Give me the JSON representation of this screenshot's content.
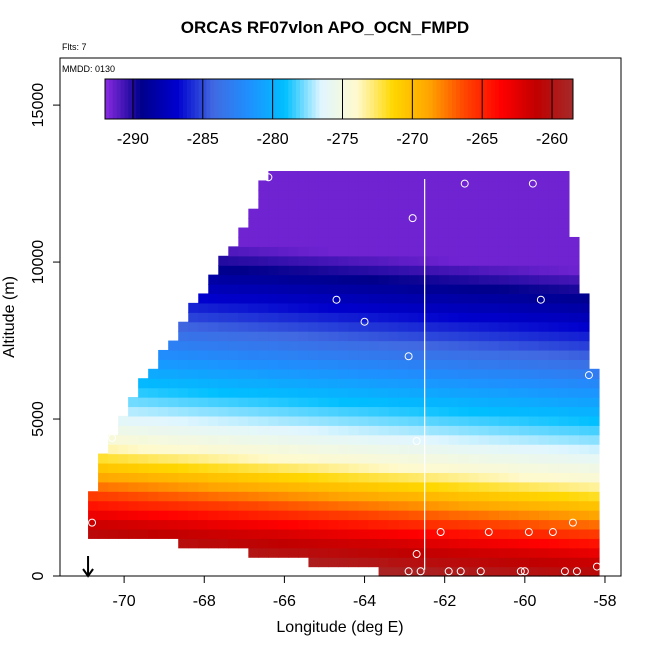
{
  "chart_data": {
    "type": "heatmap",
    "title": "ORCAS RF07vlon APO_OCN_FMPD",
    "flights_label": "Flts: 7",
    "date_label": "MMDD: 0130",
    "xlabel": "Longitude (deg E)",
    "ylabel": "Altitude (m)",
    "xlim": [
      -71.6,
      -57.6
    ],
    "ylim": [
      0,
      16500
    ],
    "x_ticks": [
      -70,
      -68,
      -66,
      -64,
      -62,
      -60,
      -58
    ],
    "y_ticks": [
      0,
      5000,
      10000,
      15000
    ],
    "colorbar": {
      "range": [
        -292,
        -258.5
      ],
      "ticks": [
        -290,
        -285,
        -280,
        -275,
        -270,
        -265,
        -260
      ],
      "colors": [
        "#8a2be2",
        "#00008b",
        "#0000cd",
        "#4169e1",
        "#1e90ff",
        "#00bfff",
        "#e0f6ff",
        "#fffacd",
        "#ffd700",
        "#ffa500",
        "#ff4500",
        "#ff0000",
        "#c00000",
        "#a52a2a"
      ]
    },
    "profile_line_lon": -62.5,
    "arrow_lon": -70.9,
    "section": {
      "lon_range": [
        -70.9,
        -58.2
      ],
      "top_alt": [
        [
          -70.9,
          1900
        ],
        [
          -70.4,
          4200
        ],
        [
          -69.8,
          5600
        ],
        [
          -69.0,
          7000
        ],
        [
          -68.0,
          9000
        ],
        [
          -67.0,
          11000
        ],
        [
          -66.4,
          12700
        ],
        [
          -59.0,
          12600
        ],
        [
          -58.5,
          8500
        ],
        [
          -58.3,
          6400
        ]
      ],
      "bottom_alt": [
        [
          -70.9,
          1500
        ],
        [
          -68.0,
          1100
        ],
        [
          -65.5,
          600
        ],
        [
          -63.0,
          200
        ],
        [
          -58.2,
          200
        ]
      ]
    },
    "samples": [
      {
        "lon": -70.8,
        "alt": 1700
      },
      {
        "lon": -70.3,
        "alt": 4400
      },
      {
        "lon": -70.2,
        "alt": 5300
      },
      {
        "lon": -66.4,
        "alt": 12700
      },
      {
        "lon": -64.7,
        "alt": 8800
      },
      {
        "lon": -64.0,
        "alt": 8100
      },
      {
        "lon": -62.9,
        "alt": 7000
      },
      {
        "lon": -62.8,
        "alt": 11400
      },
      {
        "lon": -62.7,
        "alt": 4300
      },
      {
        "lon": -62.7,
        "alt": 700
      },
      {
        "lon": -61.5,
        "alt": 12500
      },
      {
        "lon": -59.8,
        "alt": 12500
      },
      {
        "lon": -59.6,
        "alt": 8800
      },
      {
        "lon": -58.4,
        "alt": 6400
      },
      {
        "lon": -58.8,
        "alt": 1700
      },
      {
        "lon": -58.2,
        "alt": 300
      },
      {
        "lon": -62.9,
        "alt": 150
      },
      {
        "lon": -62.6,
        "alt": 150
      },
      {
        "lon": -62.1,
        "alt": 1400
      },
      {
        "lon": -61.9,
        "alt": 150
      },
      {
        "lon": -61.6,
        "alt": 150
      },
      {
        "lon": -61.1,
        "alt": 150
      },
      {
        "lon": -60.1,
        "alt": 150
      },
      {
        "lon": -59.0,
        "alt": 150
      },
      {
        "lon": -58.7,
        "alt": 150
      },
      {
        "lon": -60.9,
        "alt": 1400
      },
      {
        "lon": -59.9,
        "alt": 1400
      },
      {
        "lon": -59.3,
        "alt": 1400
      },
      {
        "lon": -60.0,
        "alt": 150
      }
    ]
  }
}
